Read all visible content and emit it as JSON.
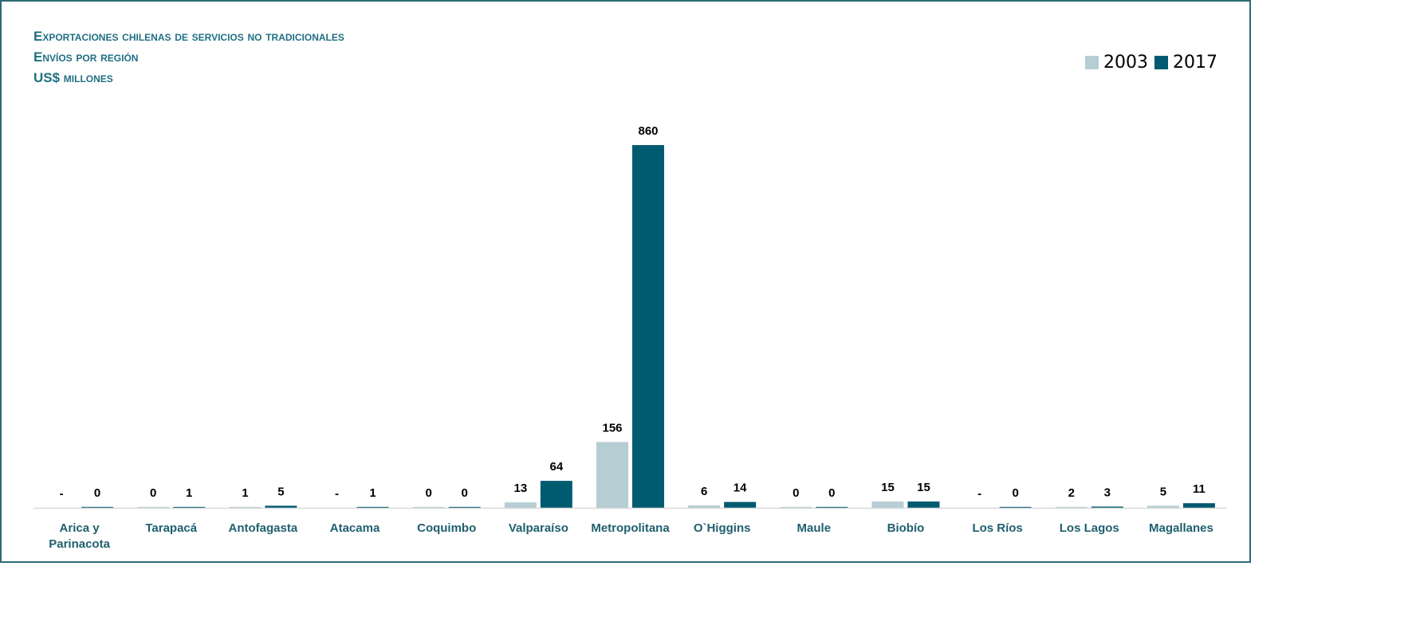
{
  "chart_data": {
    "type": "bar",
    "title": "Exportaciones chilenas de servicios no tradicionales",
    "subtitle": "Envíos por región",
    "units": "US$ millones",
    "categories": [
      [
        "Arica y",
        "Parinacota"
      ],
      [
        "Tarapacá"
      ],
      [
        "Antofagasta"
      ],
      [
        "Atacama"
      ],
      [
        "Coquimbo"
      ],
      [
        "Valparaíso"
      ],
      [
        "Metropolitana"
      ],
      [
        "O`Higgins"
      ],
      [
        "Maule"
      ],
      [
        "Biobío"
      ],
      [
        "Los Ríos"
      ],
      [
        "Los Lagos"
      ],
      [
        "Magallanes"
      ]
    ],
    "series": [
      {
        "name": "2003",
        "color": "#b6cdd4",
        "values": [
          0,
          0.2,
          1,
          0,
          0.2,
          13,
          156,
          6,
          0.2,
          15,
          0,
          2,
          5
        ],
        "labels": [
          "-",
          "0",
          "1",
          "-",
          "0",
          "13",
          "156",
          "6",
          "0",
          "15",
          "-",
          "2",
          "5"
        ]
      },
      {
        "name": "2017",
        "color": "#005a70",
        "values": [
          0.2,
          1,
          5,
          1,
          0.2,
          64,
          860,
          14,
          0.2,
          15,
          0.2,
          3,
          11
        ],
        "labels": [
          "0",
          "1",
          "5",
          "1",
          "0",
          "64",
          "860",
          "14",
          "0",
          "15",
          "0",
          "3",
          "11"
        ]
      }
    ],
    "ylim": [
      0,
      860
    ],
    "grid": false,
    "legend_position": "top-right"
  }
}
